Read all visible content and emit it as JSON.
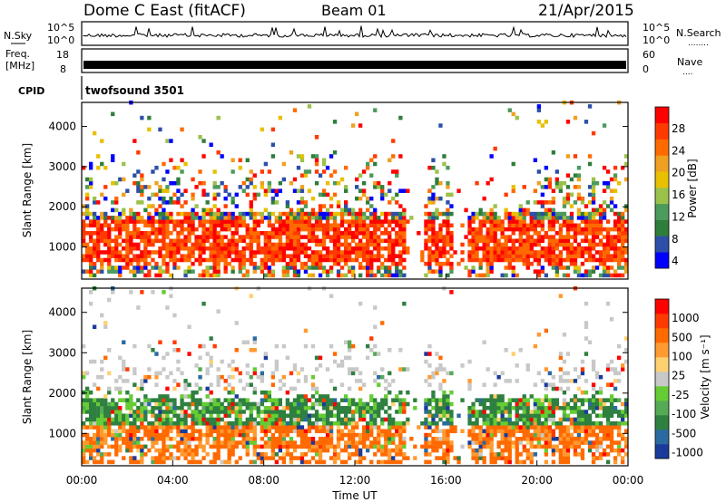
{
  "header": {
    "station": "Dome C East (fitACF)",
    "beam": "Beam 01",
    "date": "21/Apr/2015"
  },
  "strips": {
    "nsky": {
      "left_label": "N.Sky",
      "left_ticks": [
        "10^5",
        "10^0"
      ],
      "right_label": "N.Search",
      "right_ticks": [
        "10^5",
        "10^0"
      ],
      "right_marker": "........"
    },
    "freq": {
      "left_label_top": "Freq.",
      "left_label_bottom": "[MHz]",
      "left_ticks": [
        "18",
        "8"
      ],
      "right_label": "Nave",
      "right_ticks": [
        "60",
        "0"
      ],
      "right_marker": "...."
    },
    "cpid": {
      "label": "CPID",
      "program": "twofsound 3501"
    }
  },
  "colors": {
    "frame": "#000000",
    "no_data": "#ffffff"
  },
  "chart_data": [
    {
      "type": "heatmap",
      "panel": "power",
      "ylabel": "Slant Range [km]",
      "ylim": [
        200,
        4600
      ],
      "y_ticks": [
        1000,
        2000,
        3000,
        4000
      ],
      "xlim": [
        0,
        24
      ],
      "x_tick_labels": [
        "00:00",
        "04:00",
        "08:00",
        "12:00",
        "16:00",
        "20:00",
        "00:00"
      ],
      "colorbar": {
        "label": "Power [dB]",
        "ticks": [
          "28",
          "24",
          "20",
          "16",
          "12",
          "8",
          "4"
        ],
        "range": [
          0,
          30
        ],
        "colors": [
          "#0000ff",
          "#2c4fa8",
          "#2f7d3a",
          "#4c9a5c",
          "#9ac24a",
          "#e8c000",
          "#f0a020",
          "#ff6a00",
          "#ff3a00",
          "#ff0000"
        ]
      },
      "dominant_band_km": [
        600,
        1800
      ]
    },
    {
      "type": "heatmap",
      "panel": "velocity",
      "ylabel": "Slant Range [km]",
      "xlabel": "Time UT",
      "ylim": [
        200,
        4600
      ],
      "y_ticks": [
        1000,
        2000,
        3000,
        4000
      ],
      "xlim": [
        0,
        24
      ],
      "x_tick_labels": [
        "00:00",
        "04:00",
        "08:00",
        "12:00",
        "16:00",
        "20:00",
        "00:00"
      ],
      "colorbar": {
        "label": "Velocity [m s⁻¹]",
        "ticks": [
          "1000",
          "500",
          "100",
          "25",
          "-25",
          "-100",
          "-500",
          "-1000"
        ],
        "colors": [
          "#1a3a9c",
          "#2a6aa0",
          "#2e8040",
          "#55aa55",
          "#66cc33",
          "#c8c8c8",
          "#ffd070",
          "#ff9a30",
          "#ff6a00",
          "#ff3a00",
          "#ff0000"
        ]
      },
      "dominant_band_km": [
        600,
        1800
      ]
    }
  ]
}
